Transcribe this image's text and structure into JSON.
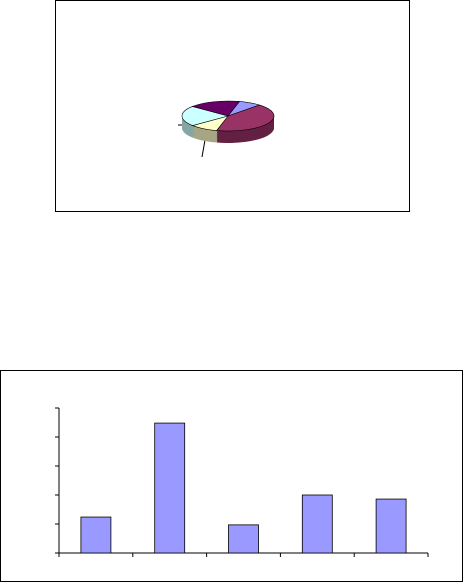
{
  "chart_data": [
    {
      "type": "pie",
      "values": [
        8,
        42,
        10,
        22,
        18
      ],
      "colors": [
        "#9999ff",
        "#993366",
        "#ffffcc",
        "#ccffff",
        "#660066"
      ]
    },
    {
      "type": "bar",
      "categories": [
        null,
        null,
        null,
        null,
        null
      ],
      "values": [
        1.24,
        4.48,
        0.97,
        2.0,
        1.86
      ],
      "color": "#9999ff",
      "ylim": [
        0,
        5
      ],
      "yticks": [
        0,
        1,
        2,
        3,
        4,
        5
      ]
    }
  ]
}
